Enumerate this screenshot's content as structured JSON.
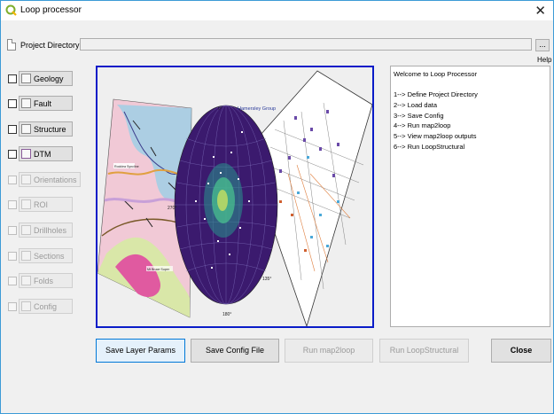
{
  "window": {
    "title": "Loop processor"
  },
  "project": {
    "label": "Project Directory",
    "value": "",
    "browse_label": "...",
    "help_label": "Help"
  },
  "layers": [
    {
      "label": "Geology",
      "enabled": true
    },
    {
      "label": "Fault",
      "enabled": true
    },
    {
      "label": "Structure",
      "enabled": true
    },
    {
      "label": "DTM",
      "enabled": true
    },
    {
      "label": "Orientations",
      "enabled": false
    },
    {
      "label": "ROI",
      "enabled": false
    },
    {
      "label": "Drillholes",
      "enabled": false
    },
    {
      "label": "Sections",
      "enabled": false
    },
    {
      "label": "Folds",
      "enabled": false
    },
    {
      "label": "Config",
      "enabled": false
    }
  ],
  "image": {
    "group_label": "Hamersley Group",
    "map_label": "Rocklea Syncline",
    "map_label2": "Mt Bruce Super",
    "stereonet_labels": [
      "0°",
      "270°",
      "135°",
      "180°"
    ]
  },
  "info": {
    "lines": [
      "Welcome to Loop Processor",
      "",
      "1--> Define Project Directory",
      "2--> Load data",
      "3--> Save Config",
      "4--> Run map2loop",
      "5--> View map2loop outputs",
      "6--> Run LoopStructural"
    ]
  },
  "actions": {
    "save_layer_params": "Save Layer Params",
    "save_config_file": "Save Config File",
    "run_map2loop": "Run map2loop",
    "run_loopstructural": "Run LoopStructural",
    "close": "Close"
  },
  "colors": {
    "accent": "#0078d7",
    "image_border": "#0a1cc8",
    "stereonet": "#3b1a6e"
  }
}
